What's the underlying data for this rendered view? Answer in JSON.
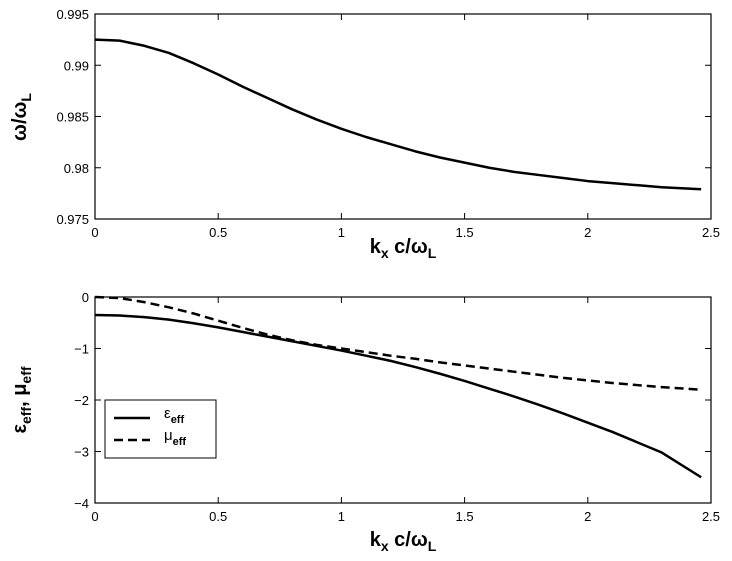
{
  "chart_data": [
    {
      "type": "line",
      "xlim": [
        0,
        2.5
      ],
      "ylim": [
        0.975,
        0.995
      ],
      "x_ticks": [
        "0",
        "0.5",
        "1",
        "1.5",
        "2",
        "2.5"
      ],
      "y_ticks": [
        "0.975",
        "0.98",
        "0.985",
        "0.99",
        "0.995"
      ],
      "xlabel": {
        "main": "k",
        "sub": "x",
        "main2": " c/ω",
        "sub2": "L"
      },
      "ylabel": {
        "main": "ω/ω",
        "sub": "L"
      },
      "grid": false,
      "series": [
        {
          "style": "solid",
          "x": [
            0,
            0.1,
            0.2,
            0.3,
            0.4,
            0.5,
            0.6,
            0.7,
            0.8,
            0.9,
            1.0,
            1.1,
            1.2,
            1.3,
            1.4,
            1.5,
            1.6,
            1.7,
            1.8,
            1.9,
            2.0,
            2.1,
            2.2,
            2.3,
            2.46
          ],
          "y": [
            0.9925,
            0.9924,
            0.9919,
            0.9912,
            0.9902,
            0.9891,
            0.9879,
            0.9868,
            0.9857,
            0.9847,
            0.9838,
            0.983,
            0.9823,
            0.9816,
            0.981,
            0.9805,
            0.98,
            0.9796,
            0.9793,
            0.979,
            0.9787,
            0.9785,
            0.9783,
            0.9781,
            0.9779
          ]
        }
      ]
    },
    {
      "type": "line",
      "xlim": [
        0,
        2.5
      ],
      "ylim": [
        -4,
        0
      ],
      "x_ticks": [
        "0",
        "0.5",
        "1",
        "1.5",
        "2",
        "2.5"
      ],
      "y_ticks": [
        "−4",
        "−3",
        "−2",
        "−1",
        "0"
      ],
      "xlabel": {
        "main": "k",
        "sub": "x",
        "main2": " c/ω",
        "sub2": "L"
      },
      "ylabel": {
        "main": "ε",
        "sub": "eff",
        "main2": ", μ",
        "sub2": "eff"
      },
      "legend_position": "left-lower",
      "grid": false,
      "series": [
        {
          "name": "ε_eff",
          "legend_main": "ε",
          "legend_sub": "eff",
          "style": "solid",
          "x": [
            0,
            0.1,
            0.2,
            0.3,
            0.4,
            0.5,
            0.6,
            0.7,
            0.8,
            0.9,
            1.0,
            1.1,
            1.2,
            1.3,
            1.4,
            1.5,
            1.6,
            1.7,
            1.8,
            1.9,
            2.0,
            2.1,
            2.2,
            2.3,
            2.46
          ],
          "y": [
            -0.35,
            -0.36,
            -0.39,
            -0.44,
            -0.51,
            -0.59,
            -0.68,
            -0.77,
            -0.86,
            -0.95,
            -1.04,
            -1.14,
            -1.24,
            -1.36,
            -1.49,
            -1.63,
            -1.78,
            -1.93,
            -2.09,
            -2.26,
            -2.44,
            -2.62,
            -2.82,
            -3.02,
            -3.5
          ]
        },
        {
          "name": "μ_eff",
          "legend_main": "μ",
          "legend_sub": "eff",
          "style": "dashed",
          "x": [
            0,
            0.1,
            0.2,
            0.3,
            0.4,
            0.5,
            0.6,
            0.7,
            0.8,
            0.9,
            1.0,
            1.1,
            1.2,
            1.3,
            1.4,
            1.5,
            1.6,
            1.7,
            1.8,
            1.9,
            2.0,
            2.1,
            2.2,
            2.3,
            2.46
          ],
          "y": [
            0.0,
            -0.02,
            -0.1,
            -0.2,
            -0.32,
            -0.46,
            -0.6,
            -0.73,
            -0.84,
            -0.93,
            -1.0,
            -1.07,
            -1.14,
            -1.2,
            -1.27,
            -1.33,
            -1.39,
            -1.45,
            -1.51,
            -1.57,
            -1.62,
            -1.67,
            -1.71,
            -1.75,
            -1.8
          ]
        }
      ]
    }
  ]
}
